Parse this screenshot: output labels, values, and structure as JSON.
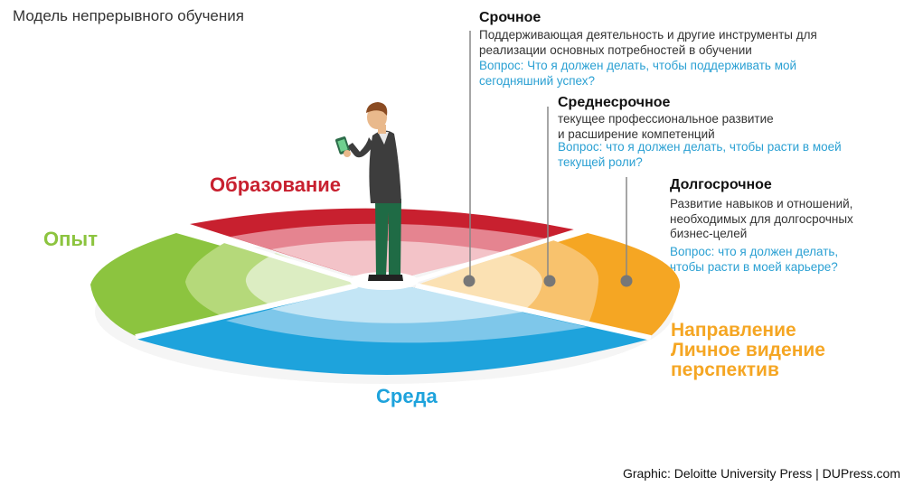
{
  "title": "Модель непрерывного обучения",
  "segments": {
    "education": "Образование",
    "experience": "Опыт",
    "environment": "Среда",
    "direction": [
      "Направление",
      "Личное видение",
      "перспектив"
    ]
  },
  "horizons": {
    "short": {
      "heading": "Срочное",
      "lines": [
        "Поддерживающая деятельность и другие инструменты для",
        "реализации основных потребностей в обучении"
      ],
      "question": [
        "Вопрос: Что я должен делать, чтобы поддерживать мой",
        "сегодняшний успех?"
      ]
    },
    "medium": {
      "heading": "Среднесрочное",
      "lines": [
        "текущее профессиональное развитие",
        "и расширение компетенций"
      ],
      "question": [
        "Вопрос: что я должен делать, чтобы расти в моей",
        "текущей роли?"
      ]
    },
    "long": {
      "heading": "Долгосрочное",
      "lines": [
        "Развитие навыков и отношений,",
        "необходимых для долгосрочных",
        "бизнес-целей"
      ],
      "question": [
        "Вопрос: что я должен делать,",
        "чтобы расти в моей карьере?"
      ]
    }
  },
  "credit": "Graphic: Deloitte University Press  |  DUPress.com",
  "colors": {
    "education": "#c8202f",
    "experience": "#8cc43f",
    "environment": "#1ea3dc",
    "direction": "#f5a623",
    "question": "#2aa0d3"
  }
}
